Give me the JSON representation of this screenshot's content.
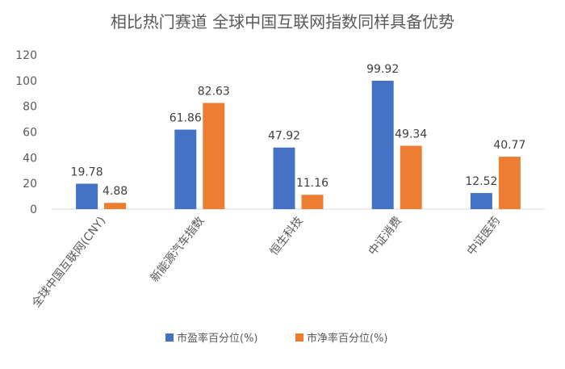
{
  "chart_data": {
    "type": "bar",
    "title": "相比热门赛道 全球中国互联网指数同样具备优势",
    "categories": [
      "全球中国互联网(CNY)",
      "新能源汽车指数",
      "恒生科技",
      "中证消费",
      "中证医药"
    ],
    "series": [
      {
        "name": "市盈率百分位(%)",
        "values": [
          19.78,
          61.86,
          47.92,
          99.92,
          12.52
        ],
        "color": "#4472C4"
      },
      {
        "name": "市净率百分位(%)",
        "values": [
          4.88,
          82.63,
          11.16,
          49.34,
          40.77
        ],
        "color": "#ED7D31"
      }
    ],
    "value_labels": [
      [
        "19.78",
        "61.86",
        "47.92",
        "99.92",
        "12.52"
      ],
      [
        "4.88",
        "82.63",
        "11.16",
        "49.34",
        "40.77"
      ]
    ],
    "ylim": [
      0,
      120
    ],
    "yticks": [
      0,
      20,
      40,
      60,
      80,
      100,
      120
    ],
    "grid": false,
    "legend_position": "bottom"
  }
}
